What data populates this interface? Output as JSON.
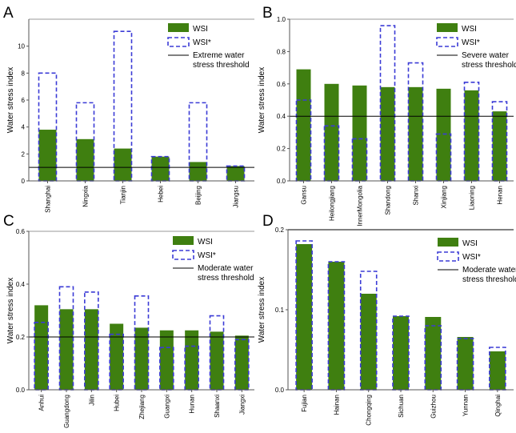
{
  "colors": {
    "wsi_bar": "#3f7f10",
    "wsi_star_outline": "#3b3bd6",
    "threshold_line": "#000000",
    "axis": "#555555"
  },
  "legend_labels": {
    "wsi": "WSI",
    "wsi_star": "WSI*"
  },
  "chart_data": [
    {
      "panel": "A",
      "type": "bar",
      "ylabel": "Water stress index",
      "ylim": [
        0,
        12
      ],
      "yticks": [
        0,
        2,
        4,
        6,
        8,
        10
      ],
      "categories": [
        "Shanghai",
        "Ningxia",
        "Tianjin",
        "Hebei",
        "Beijing",
        "Jiangsu"
      ],
      "series": [
        {
          "name": "WSI",
          "values": [
            3.8,
            3.1,
            2.4,
            1.8,
            1.4,
            1.1
          ]
        },
        {
          "name": "WSI*",
          "values": [
            8.0,
            5.8,
            11.1,
            1.8,
            5.8,
            1.1
          ]
        }
      ],
      "threshold": {
        "value": 1.0,
        "label": [
          "Extreme water",
          "stress threshold"
        ]
      },
      "legend_position": "top-right"
    },
    {
      "panel": "B",
      "type": "bar",
      "ylabel": "Water stress index",
      "ylim": [
        0,
        1.0
      ],
      "yticks": [
        0.0,
        0.2,
        0.4,
        0.6,
        0.8,
        1.0
      ],
      "categories": [
        "Gansu",
        "Heilongjiang",
        "InnerMongolia",
        "Shandong",
        "Shanxi",
        "Xinjiang",
        "Liaoning",
        "Henan"
      ],
      "series": [
        {
          "name": "WSI",
          "values": [
            0.69,
            0.6,
            0.59,
            0.58,
            0.58,
            0.57,
            0.56,
            0.43
          ]
        },
        {
          "name": "WSI*",
          "values": [
            0.5,
            0.34,
            0.26,
            0.96,
            0.73,
            0.29,
            0.61,
            0.49
          ]
        }
      ],
      "threshold": {
        "value": 0.4,
        "label": [
          "Severe water",
          "stress threshold"
        ]
      },
      "legend_position": "top-right"
    },
    {
      "panel": "C",
      "type": "bar",
      "ylabel": "Water stress index",
      "ylim": [
        0,
        0.6
      ],
      "yticks": [
        0.0,
        0.2,
        0.4,
        0.6
      ],
      "categories": [
        "Anhui",
        "Guangdong",
        "Jilin",
        "Hubei",
        "Zhejiang",
        "Guangxi",
        "Hunan",
        "Shaanxi",
        "Jiangxi"
      ],
      "series": [
        {
          "name": "WSI",
          "values": [
            0.32,
            0.305,
            0.305,
            0.25,
            0.235,
            0.225,
            0.225,
            0.22,
            0.205
          ]
        },
        {
          "name": "WSI*",
          "values": [
            0.255,
            0.39,
            0.37,
            0.21,
            0.355,
            0.16,
            0.165,
            0.28,
            0.19
          ]
        }
      ],
      "threshold": {
        "value": 0.2,
        "label": [
          "Moderate water",
          "stress threshold"
        ]
      },
      "legend_position": "top-right"
    },
    {
      "panel": "D",
      "type": "bar",
      "ylabel": "Water stress index",
      "ylim": [
        0,
        0.2
      ],
      "yticks": [
        0.0,
        0.1,
        0.2
      ],
      "categories": [
        "Fujian",
        "Hainan",
        "Chongqing",
        "Sichuan",
        "Guizhou",
        "Yunnan",
        "Qinghai"
      ],
      "series": [
        {
          "name": "WSI",
          "values": [
            0.182,
            0.16,
            0.12,
            0.092,
            0.091,
            0.066,
            0.048
          ]
        },
        {
          "name": "WSI*",
          "values": [
            0.186,
            0.16,
            0.148,
            0.092,
            0.08,
            0.064,
            0.053
          ]
        }
      ],
      "threshold": {
        "value": 0.2,
        "label": [
          "Moderate water",
          "stress threshold"
        ]
      },
      "legend_position": "top-right"
    }
  ]
}
